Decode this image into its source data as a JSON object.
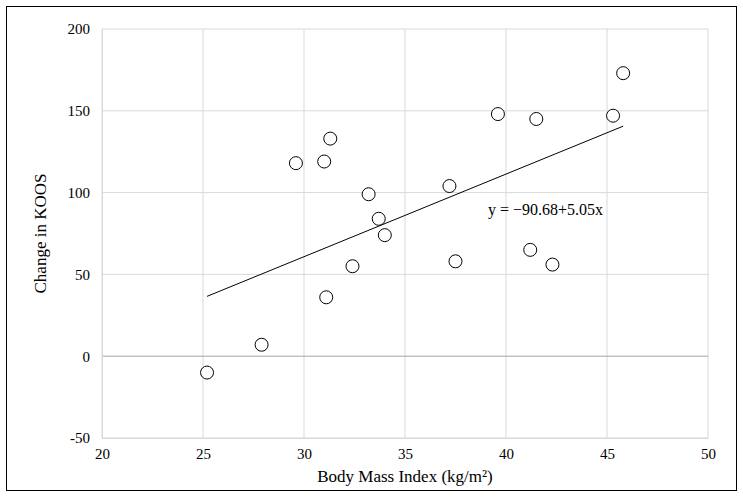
{
  "chart_data": {
    "type": "scatter",
    "x_label": "Body Mass Index (kg/m²)",
    "y_label": "Change in KOOS",
    "annotation": "y = −90.68+5.05x",
    "x": [
      25.2,
      27.9,
      29.6,
      31.0,
      31.3,
      31.1,
      32.4,
      33.2,
      33.7,
      34.0,
      37.2,
      37.5,
      39.6,
      41.2,
      41.5,
      42.3,
      45.3,
      45.8
    ],
    "values": [
      -10,
      7,
      118,
      119,
      133,
      36,
      55,
      99,
      84,
      74,
      104,
      58,
      148,
      65,
      145,
      56,
      147,
      173
    ],
    "marker": "circle",
    "color": "#000000",
    "trend_line": {
      "type": "line",
      "x": [
        25.2,
        45.8
      ],
      "values": [
        36.58,
        140.61
      ],
      "color": "#000000",
      "line_style": "solid"
    },
    "xlim": [
      20,
      50
    ],
    "xticks": [
      20,
      25,
      30,
      35,
      40,
      45,
      50
    ],
    "ylim": [
      -50,
      200
    ],
    "yticks": [
      -50,
      0,
      50,
      100,
      150,
      200
    ],
    "grid": true
  }
}
